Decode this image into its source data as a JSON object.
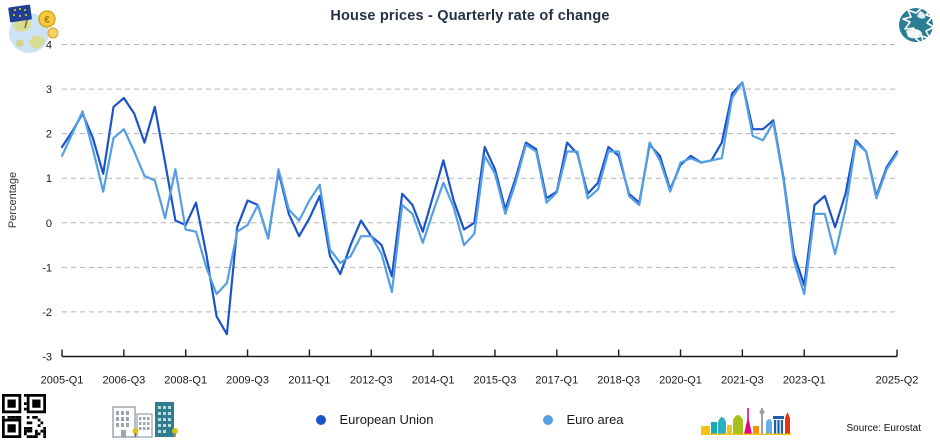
{
  "header": {
    "title": "House prices - Quarterly rate of change"
  },
  "chart_data": {
    "type": "line",
    "title": "House prices - Quarterly rate of change",
    "ylabel": "Percentage",
    "ylim": [
      -3,
      4
    ],
    "y_ticks": [
      4,
      3,
      2,
      1,
      0,
      -1,
      -2,
      -3
    ],
    "x_start": "2005-Q1",
    "x_end": "2025-Q2",
    "x_frequency": "quarterly",
    "x_tick_labels": [
      "2005-Q1",
      "2006-Q3",
      "2008-Q1",
      "2009-Q3",
      "2011-Q1",
      "2012-Q3",
      "2014-Q1",
      "2015-Q3",
      "2017-Q1",
      "2018-Q3",
      "2020-Q1",
      "2021-Q3",
      "2023-Q1",
      "2025-Q2"
    ],
    "x_tick_indices": [
      0,
      6,
      12,
      18,
      24,
      30,
      36,
      42,
      48,
      54,
      60,
      66,
      72,
      81
    ],
    "grid": "horizontal-dashed",
    "legend_position": "bottom-center",
    "series": [
      {
        "name": "European Union",
        "color": "#1b54c9",
        "values": [
          1.7,
          2.05,
          2.45,
          1.9,
          1.1,
          2.6,
          2.8,
          2.45,
          1.8,
          2.6,
          1.35,
          0.05,
          -0.05,
          0.45,
          -0.7,
          -2.1,
          -2.5,
          -0.1,
          0.5,
          0.4,
          -0.35,
          1.15,
          0.2,
          -0.3,
          0.1,
          0.6,
          -0.75,
          -1.15,
          -0.5,
          0.05,
          -0.3,
          -0.5,
          -1.2,
          0.65,
          0.4,
          -0.2,
          0.6,
          1.4,
          0.5,
          -0.15,
          0.0,
          1.7,
          1.2,
          0.3,
          1.0,
          1.8,
          1.65,
          0.55,
          0.7,
          1.8,
          1.55,
          0.65,
          0.9,
          1.7,
          1.5,
          0.65,
          0.45,
          1.75,
          1.5,
          0.75,
          1.3,
          1.5,
          1.35,
          1.4,
          1.8,
          2.9,
          3.15,
          2.1,
          2.1,
          2.3,
          1.0,
          -0.7,
          -1.4,
          0.4,
          0.6,
          -0.1,
          0.65,
          1.85,
          1.6,
          0.6,
          1.25,
          1.6
        ]
      },
      {
        "name": "Euro area",
        "color": "#549fe4",
        "values": [
          1.5,
          2.0,
          2.5,
          1.65,
          0.7,
          1.9,
          2.1,
          1.6,
          1.05,
          0.95,
          0.1,
          1.2,
          -0.15,
          -0.2,
          -1.0,
          -1.6,
          -1.35,
          -0.2,
          -0.05,
          0.4,
          -0.35,
          1.2,
          0.3,
          0.05,
          0.5,
          0.85,
          -0.6,
          -0.9,
          -0.75,
          -0.3,
          -0.3,
          -0.7,
          -1.55,
          0.4,
          0.2,
          -0.45,
          0.25,
          0.9,
          0.35,
          -0.5,
          -0.25,
          1.5,
          1.1,
          0.2,
          0.9,
          1.75,
          1.6,
          0.45,
          0.68,
          1.6,
          1.6,
          0.55,
          0.75,
          1.6,
          1.6,
          0.6,
          0.4,
          1.8,
          1.4,
          0.7,
          1.35,
          1.45,
          1.35,
          1.4,
          1.45,
          2.8,
          3.15,
          1.95,
          1.85,
          2.25,
          0.95,
          -0.85,
          -1.6,
          0.2,
          0.2,
          -0.7,
          0.3,
          1.8,
          1.6,
          0.55,
          1.2,
          1.55
        ]
      }
    ]
  },
  "footer": {
    "source": "Source: Eurostat"
  },
  "icons": {
    "top_left": "globe-euro-flag-coins-icon",
    "top_right": "eurostat-europe-globe-icon",
    "bottom_left": "qr-code-icon",
    "buildings": "buildings-icon",
    "skyline": "european-landmarks-skyline-icon"
  }
}
